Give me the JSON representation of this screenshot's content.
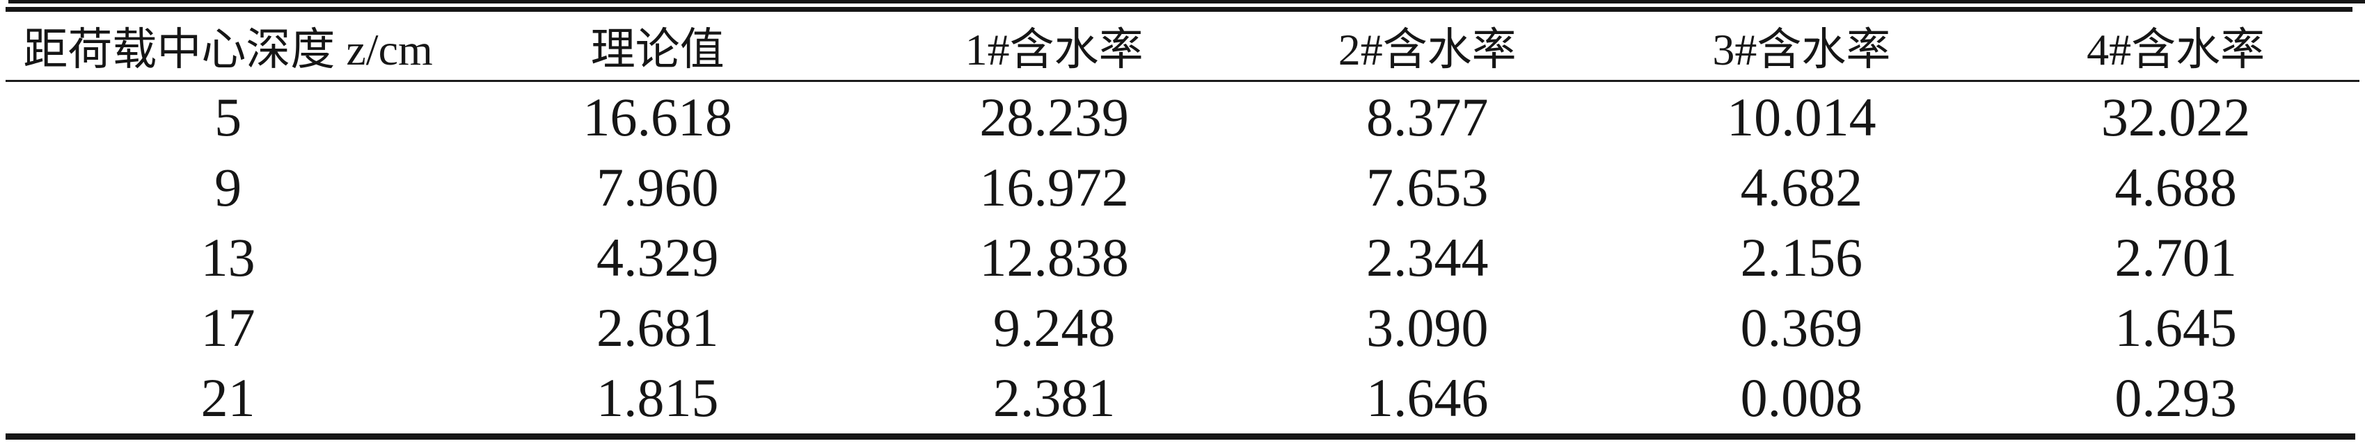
{
  "table": {
    "columns": [
      "距荷载中心深度 z/cm",
      "理论值",
      "1#含水率",
      "2#含水率",
      "3#含水率",
      "4#含水率"
    ],
    "rows": [
      [
        "5",
        "16.618",
        "28.239",
        "8.377",
        "10.014",
        "32.022"
      ],
      [
        "9",
        "7.960",
        "16.972",
        "7.653",
        "4.682",
        "4.688"
      ],
      [
        "13",
        "4.329",
        "12.838",
        "2.344",
        "2.156",
        "2.701"
      ],
      [
        "17",
        "2.681",
        "9.248",
        "3.090",
        "0.369",
        "1.645"
      ],
      [
        "21",
        "1.815",
        "2.381",
        "1.646",
        "0.008",
        "0.293"
      ]
    ]
  },
  "chart_data": {
    "type": "table",
    "columns": [
      "距荷载中心深度 z/cm",
      "理论值",
      "1#含水率",
      "2#含水率",
      "3#含水率",
      "4#含水率"
    ],
    "depths_z_cm": [
      5,
      9,
      13,
      17,
      21
    ],
    "series": [
      {
        "name": "理论值",
        "values": [
          16.618,
          7.96,
          4.329,
          2.681,
          1.815
        ]
      },
      {
        "name": "1#含水率",
        "values": [
          28.239,
          16.972,
          12.838,
          9.248,
          2.381
        ]
      },
      {
        "name": "2#含水率",
        "values": [
          8.377,
          7.653,
          2.344,
          3.09,
          1.646
        ]
      },
      {
        "name": "3#含水率",
        "values": [
          10.014,
          4.682,
          2.156,
          0.369,
          0.008
        ]
      },
      {
        "name": "4#含水率",
        "values": [
          32.022,
          4.688,
          2.701,
          1.645,
          0.293
        ]
      }
    ]
  },
  "colors": {
    "background": "#ffffff",
    "text": "#161616",
    "rule": "#161616"
  }
}
